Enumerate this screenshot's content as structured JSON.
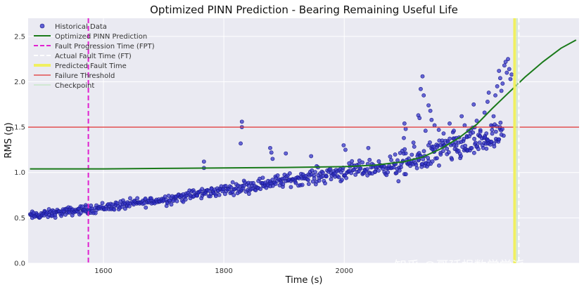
{
  "chart_data": {
    "type": "scatter",
    "title": "Optimized PINN Prediction - Bearing Remaining Useful Life",
    "xlabel": "Time (s)",
    "ylabel": "RMS (g)",
    "xlim": [
      1475,
      2390
    ],
    "ylim": [
      0.0,
      2.7
    ],
    "x_ticks": [
      1600,
      1800,
      2000
    ],
    "x_tick_labels": [
      "1600",
      "1800",
      "2000"
    ],
    "y_ticks": [
      0.0,
      0.5,
      1.0,
      1.5,
      2.0,
      2.5
    ],
    "y_tick_labels": [
      "0.0",
      "0.5",
      "1.0",
      "1.5",
      "2.0",
      "2.5"
    ],
    "grid": true,
    "legend_position": "top-left",
    "legend": [
      {
        "label": "Historical Data",
        "kind": "marker",
        "color": "#3030c8"
      },
      {
        "label": "Optimized PINN Prediction",
        "kind": "line",
        "color": "#1a7a1a"
      },
      {
        "label": "Fault Progression Time (FPT)",
        "kind": "dashed",
        "color": "#e020d0"
      },
      {
        "label": "Actual Fault Time (FT)",
        "kind": "dashed",
        "color": "#ffffff"
      },
      {
        "label": "Predicted Fault Time",
        "kind": "thick",
        "color": "#f0f060"
      },
      {
        "label": "Failure Threshold",
        "kind": "line",
        "color": "#e03030"
      },
      {
        "label": "Checkpoint",
        "kind": "line",
        "color": "#c8e8c8"
      }
    ],
    "scatter_segments": [
      {
        "x0": 1478,
        "x1": 1580,
        "y0": 0.52,
        "y1": 0.6,
        "spread": 0.035,
        "count": 95
      },
      {
        "x0": 1580,
        "x1": 1700,
        "y0": 0.6,
        "y1": 0.7,
        "spread": 0.04,
        "count": 95
      },
      {
        "x0": 1700,
        "x1": 1820,
        "y0": 0.7,
        "y1": 0.83,
        "spread": 0.045,
        "count": 100
      },
      {
        "x0": 1820,
        "x1": 1950,
        "y0": 0.83,
        "y1": 0.96,
        "spread": 0.055,
        "count": 110
      },
      {
        "x0": 1950,
        "x1": 2080,
        "y0": 0.96,
        "y1": 1.08,
        "spread": 0.07,
        "count": 110
      },
      {
        "x0": 2080,
        "x1": 2170,
        "y0": 1.05,
        "y1": 1.25,
        "spread": 0.12,
        "count": 90
      },
      {
        "x0": 2170,
        "x1": 2265,
        "y0": 1.25,
        "y1": 1.4,
        "spread": 0.12,
        "count": 95
      }
    ],
    "scatter_outliers": [
      {
        "x": 1767,
        "y": 1.12
      },
      {
        "x": 1767,
        "y": 1.05
      },
      {
        "x": 1830,
        "y": 1.56
      },
      {
        "x": 1830,
        "y": 1.5
      },
      {
        "x": 1828,
        "y": 1.32
      },
      {
        "x": 1877,
        "y": 1.27
      },
      {
        "x": 1879,
        "y": 1.22
      },
      {
        "x": 1881,
        "y": 1.15
      },
      {
        "x": 1903,
        "y": 1.21
      },
      {
        "x": 1945,
        "y": 1.18
      },
      {
        "x": 1999,
        "y": 1.3
      },
      {
        "x": 2002,
        "y": 1.25
      },
      {
        "x": 2040,
        "y": 1.27
      },
      {
        "x": 2100,
        "y": 1.54
      },
      {
        "x": 2102,
        "y": 1.48
      },
      {
        "x": 2099,
        "y": 1.38
      },
      {
        "x": 2127,
        "y": 1.92
      },
      {
        "x": 2130,
        "y": 2.06
      },
      {
        "x": 2132,
        "y": 1.85
      },
      {
        "x": 2123,
        "y": 1.63
      },
      {
        "x": 2125,
        "y": 1.6
      },
      {
        "x": 2135,
        "y": 1.46
      },
      {
        "x": 2140,
        "y": 1.74
      },
      {
        "x": 2143,
        "y": 1.68
      },
      {
        "x": 2145,
        "y": 1.58
      },
      {
        "x": 2150,
        "y": 1.52
      },
      {
        "x": 2157,
        "y": 1.47
      },
      {
        "x": 2165,
        "y": 1.43
      },
      {
        "x": 2175,
        "y": 1.54
      },
      {
        "x": 2182,
        "y": 1.46
      },
      {
        "x": 2186,
        "y": 1.38
      },
      {
        "x": 2195,
        "y": 1.62
      },
      {
        "x": 2200,
        "y": 1.52
      },
      {
        "x": 2206,
        "y": 1.46
      },
      {
        "x": 2215,
        "y": 1.75
      },
      {
        "x": 2220,
        "y": 1.57
      },
      {
        "x": 2226,
        "y": 1.45
      },
      {
        "x": 2233,
        "y": 1.66
      },
      {
        "x": 2238,
        "y": 1.78
      },
      {
        "x": 2240,
        "y": 1.88
      },
      {
        "x": 2236,
        "y": 1.43
      },
      {
        "x": 2244,
        "y": 1.52
      },
      {
        "x": 2248,
        "y": 1.62
      },
      {
        "x": 2251,
        "y": 1.85
      },
      {
        "x": 2254,
        "y": 1.95
      },
      {
        "x": 2257,
        "y": 2.12
      },
      {
        "x": 2259,
        "y": 2.04
      },
      {
        "x": 2261,
        "y": 1.9
      },
      {
        "x": 2263,
        "y": 1.98
      },
      {
        "x": 2266,
        "y": 2.18
      },
      {
        "x": 2268,
        "y": 2.22
      },
      {
        "x": 2270,
        "y": 2.1
      },
      {
        "x": 2272,
        "y": 2.25
      },
      {
        "x": 2274,
        "y": 2.14
      },
      {
        "x": 2276,
        "y": 2.03
      },
      {
        "x": 2278,
        "y": 2.08
      }
    ],
    "pinn_curve": [
      {
        "x": 1478,
        "y": 1.04
      },
      {
        "x": 1600,
        "y": 1.04
      },
      {
        "x": 1700,
        "y": 1.045
      },
      {
        "x": 1800,
        "y": 1.05
      },
      {
        "x": 1900,
        "y": 1.055
      },
      {
        "x": 2000,
        "y": 1.065
      },
      {
        "x": 2050,
        "y": 1.08
      },
      {
        "x": 2100,
        "y": 1.12
      },
      {
        "x": 2130,
        "y": 1.17
      },
      {
        "x": 2160,
        "y": 1.26
      },
      {
        "x": 2190,
        "y": 1.38
      },
      {
        "x": 2220,
        "y": 1.53
      },
      {
        "x": 2245,
        "y": 1.7
      },
      {
        "x": 2270,
        "y": 1.86
      },
      {
        "x": 2300,
        "y": 2.05
      },
      {
        "x": 2330,
        "y": 2.22
      },
      {
        "x": 2360,
        "y": 2.37
      },
      {
        "x": 2385,
        "y": 2.46
      }
    ],
    "fault_progression_time": 1575,
    "actual_fault_time": 2290,
    "predicted_fault_time": 2283,
    "checkpoint_time": 2287,
    "failure_threshold": 1.5
  },
  "watermark": "知乎 @哥廷根数学学派"
}
